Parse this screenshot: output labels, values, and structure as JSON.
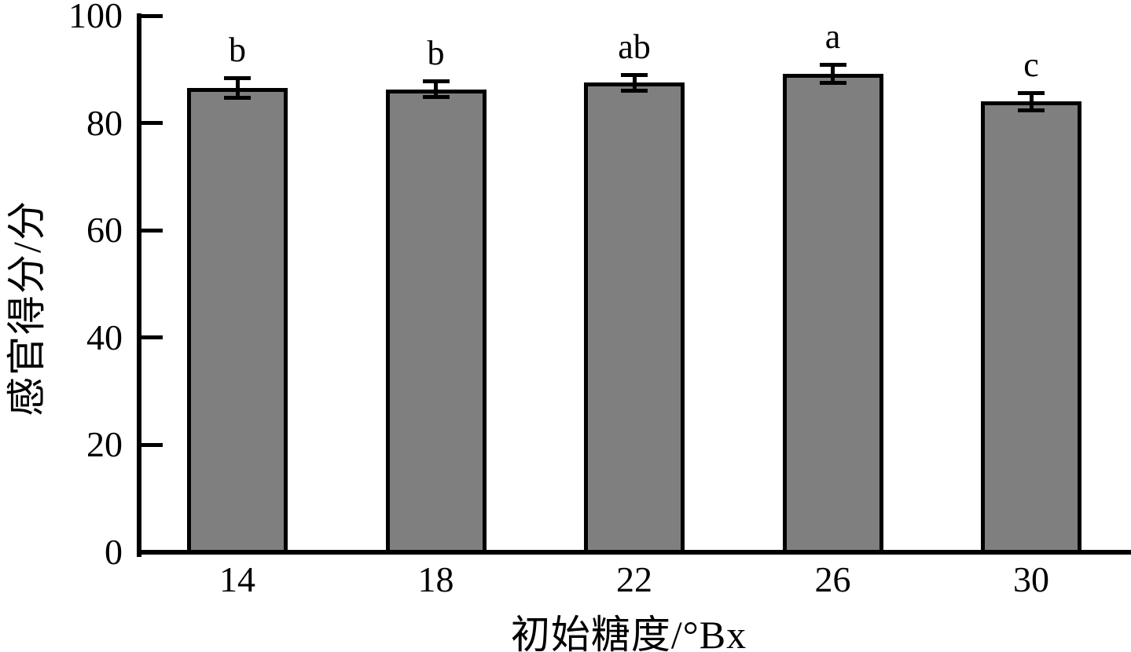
{
  "chart_data": {
    "type": "bar",
    "categories": [
      "14",
      "18",
      "22",
      "26",
      "30"
    ],
    "values": [
      86.5,
      86.3,
      87.5,
      89.2,
      84.0
    ],
    "errors": [
      1.8,
      1.4,
      1.4,
      1.6,
      1.5
    ],
    "sig_labels": [
      "b",
      "b",
      "ab",
      "a",
      "c"
    ],
    "title": "",
    "xlabel": "初始糖度/°Bx",
    "ylabel": "感官得分/分",
    "ylim": [
      0,
      100
    ],
    "yticks": [
      0,
      20,
      40,
      60,
      80,
      100
    ],
    "grid": false,
    "legend": null,
    "bar_color": "#7f7f7f",
    "axis_color": "#000000"
  }
}
